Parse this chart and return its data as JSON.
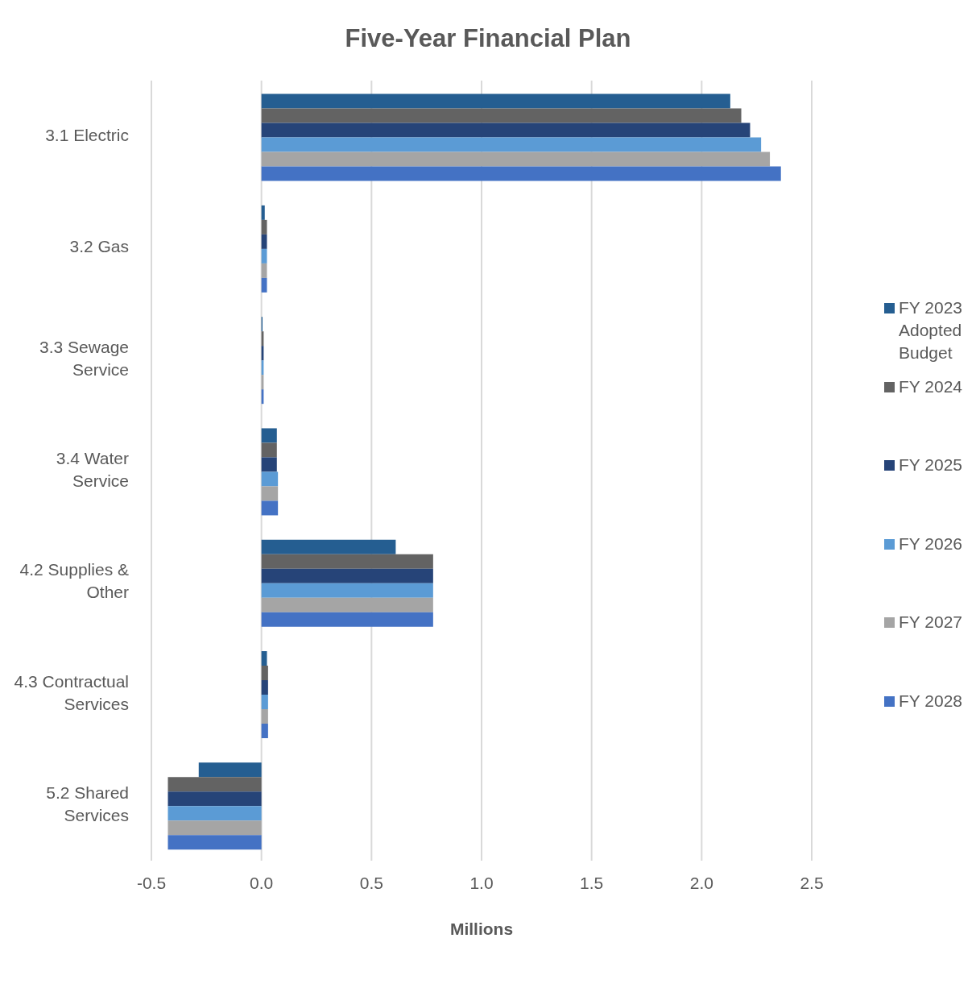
{
  "chart_data": {
    "type": "bar",
    "orientation": "horizontal",
    "title": "Five-Year Financial Plan",
    "xlabel": "Millions",
    "categories": [
      "3.1 Electric",
      "3.2 Gas",
      "3.3 Sewage Service",
      "3.4 Water Service",
      "4.2 Supplies & Other",
      "4.3 Contractual Services",
      "5.2 Shared Services"
    ],
    "series": [
      {
        "name": "FY 2023 Adopted Budget",
        "color": "#255e91",
        "values": [
          2.13,
          0.015,
          0.005,
          0.07,
          0.61,
          0.025,
          -0.285
        ]
      },
      {
        "name": "FY 2024",
        "color": "#636363",
        "values": [
          2.18,
          0.025,
          0.01,
          0.07,
          0.78,
          0.03,
          -0.425
        ]
      },
      {
        "name": "FY 2025",
        "color": "#264478",
        "values": [
          2.22,
          0.025,
          0.01,
          0.07,
          0.78,
          0.03,
          -0.425
        ]
      },
      {
        "name": "FY 2026",
        "color": "#5b9bd5",
        "values": [
          2.27,
          0.025,
          0.01,
          0.075,
          0.78,
          0.03,
          -0.425
        ]
      },
      {
        "name": "FY 2027",
        "color": "#a5a5a5",
        "values": [
          2.31,
          0.025,
          0.01,
          0.075,
          0.78,
          0.03,
          -0.425
        ]
      },
      {
        "name": "FY 2028",
        "color": "#4472c4",
        "values": [
          2.36,
          0.025,
          0.01,
          0.075,
          0.78,
          0.03,
          -0.425
        ]
      }
    ],
    "xlim": [
      -0.5,
      2.5
    ],
    "xticks": [
      {
        "value": -0.5,
        "label": "-0.5"
      },
      {
        "value": 0,
        "label": "0.0"
      },
      {
        "value": 0.5,
        "label": "0.5"
      },
      {
        "value": 1,
        "label": "1.0"
      },
      {
        "value": 1.5,
        "label": "1.5"
      },
      {
        "value": 2,
        "label": "2.0"
      },
      {
        "value": 2.5,
        "label": "2.5"
      }
    ],
    "grid": "x",
    "legend": "right"
  }
}
